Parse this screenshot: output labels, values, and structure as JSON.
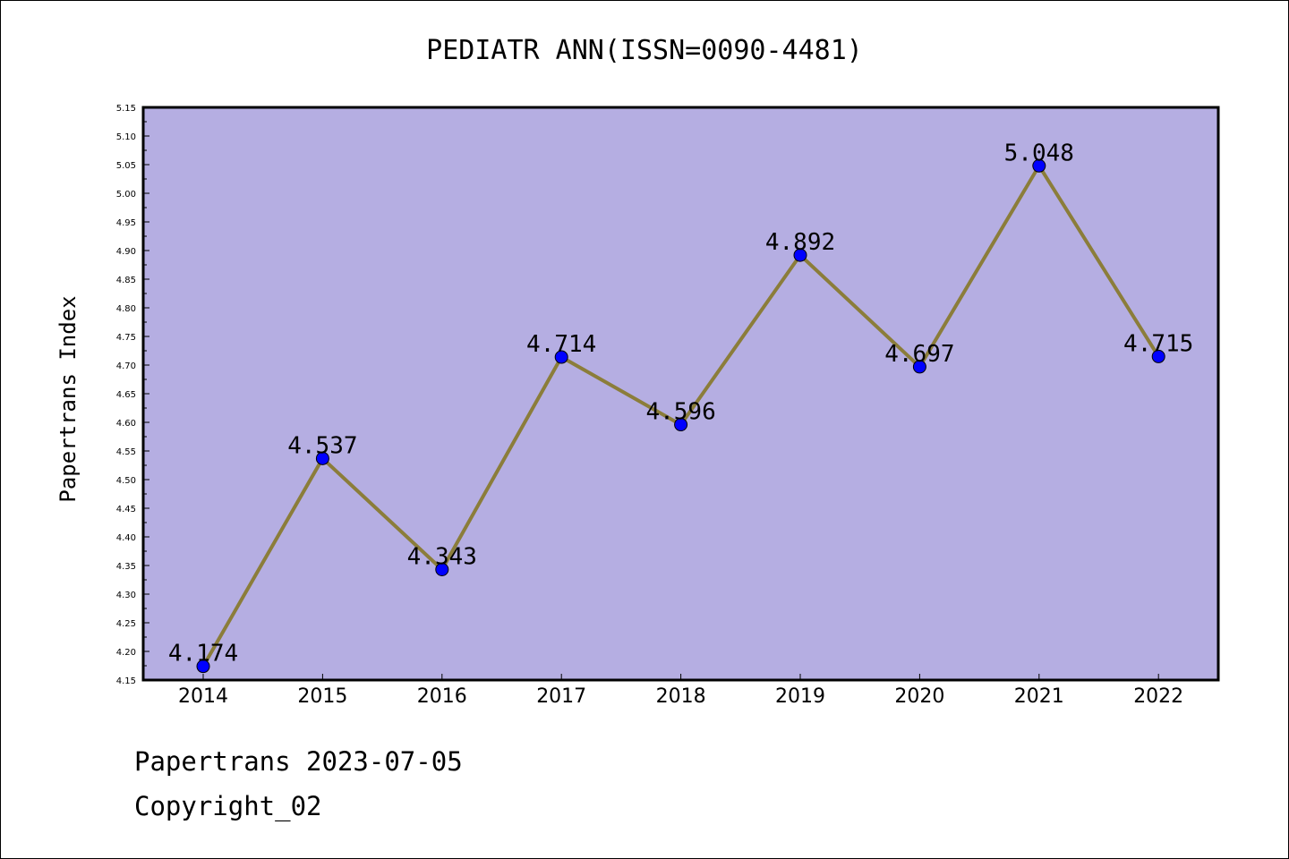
{
  "chart_data": {
    "type": "line",
    "title": "PEDIATR ANN(ISSN=0090-4481)",
    "ylabel": "Papertrans Index",
    "xlabel": "",
    "categories": [
      "2014",
      "2015",
      "2016",
      "2017",
      "2018",
      "2019",
      "2020",
      "2021",
      "2022"
    ],
    "values": [
      4.174,
      4.537,
      4.343,
      4.714,
      4.596,
      4.892,
      4.697,
      5.048,
      4.715
    ],
    "data_labels": [
      "4.174",
      "4.537",
      "4.343",
      "4.714",
      "4.596",
      "4.892",
      "4.697",
      "5.048",
      "4.715"
    ],
    "ylim": [
      4.15,
      5.15
    ],
    "yticks": [
      "4.15",
      "4.20",
      "4.25",
      "4.30",
      "4.35",
      "4.40",
      "4.45",
      "4.50",
      "4.55",
      "4.60",
      "4.65",
      "4.70",
      "4.75",
      "4.80",
      "4.85",
      "4.90",
      "4.95",
      "5.00",
      "5.05",
      "5.10",
      "5.15"
    ],
    "grid": false,
    "legend": "none",
    "colors": {
      "plot_background": "#b5aee2",
      "line": "#8b7d3a",
      "marker": "#0000ff"
    }
  },
  "footer": {
    "line1": "Papertrans 2023-07-05",
    "line2": "Copyright_02"
  }
}
